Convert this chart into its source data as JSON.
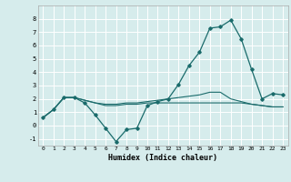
{
  "xlabel": "Humidex (Indice chaleur)",
  "ylabel": "",
  "background_color": "#d6ecec",
  "grid_color": "#ffffff",
  "line_color": "#1a6b6b",
  "xlim": [
    -0.5,
    23.5
  ],
  "ylim": [
    -1.5,
    9.0
  ],
  "xticks": [
    0,
    1,
    2,
    3,
    4,
    5,
    6,
    7,
    8,
    9,
    10,
    11,
    12,
    13,
    14,
    15,
    16,
    17,
    18,
    19,
    20,
    21,
    22,
    23
  ],
  "yticks": [
    -1,
    0,
    1,
    2,
    3,
    4,
    5,
    6,
    7,
    8
  ],
  "series": [
    [
      0.6,
      1.2,
      2.1,
      2.1,
      1.7,
      0.8,
      -0.2,
      -1.2,
      -0.3,
      -0.2,
      1.5,
      1.8,
      2.0,
      3.1,
      4.5,
      5.5,
      7.3,
      7.4,
      7.9,
      6.5,
      4.2,
      2.0,
      2.4,
      2.3
    ],
    [
      0.6,
      1.2,
      2.1,
      2.1,
      1.9,
      1.7,
      1.6,
      1.6,
      1.7,
      1.7,
      1.8,
      1.9,
      2.0,
      2.1,
      2.2,
      2.3,
      2.5,
      2.5,
      2.0,
      1.8,
      1.6,
      1.5,
      1.4,
      1.4
    ],
    [
      0.6,
      1.2,
      2.1,
      2.1,
      1.9,
      1.7,
      1.5,
      1.5,
      1.6,
      1.6,
      1.7,
      1.7,
      1.7,
      1.7,
      1.7,
      1.7,
      1.7,
      1.7,
      1.7,
      1.7,
      1.6,
      1.5,
      1.4,
      1.4
    ]
  ]
}
